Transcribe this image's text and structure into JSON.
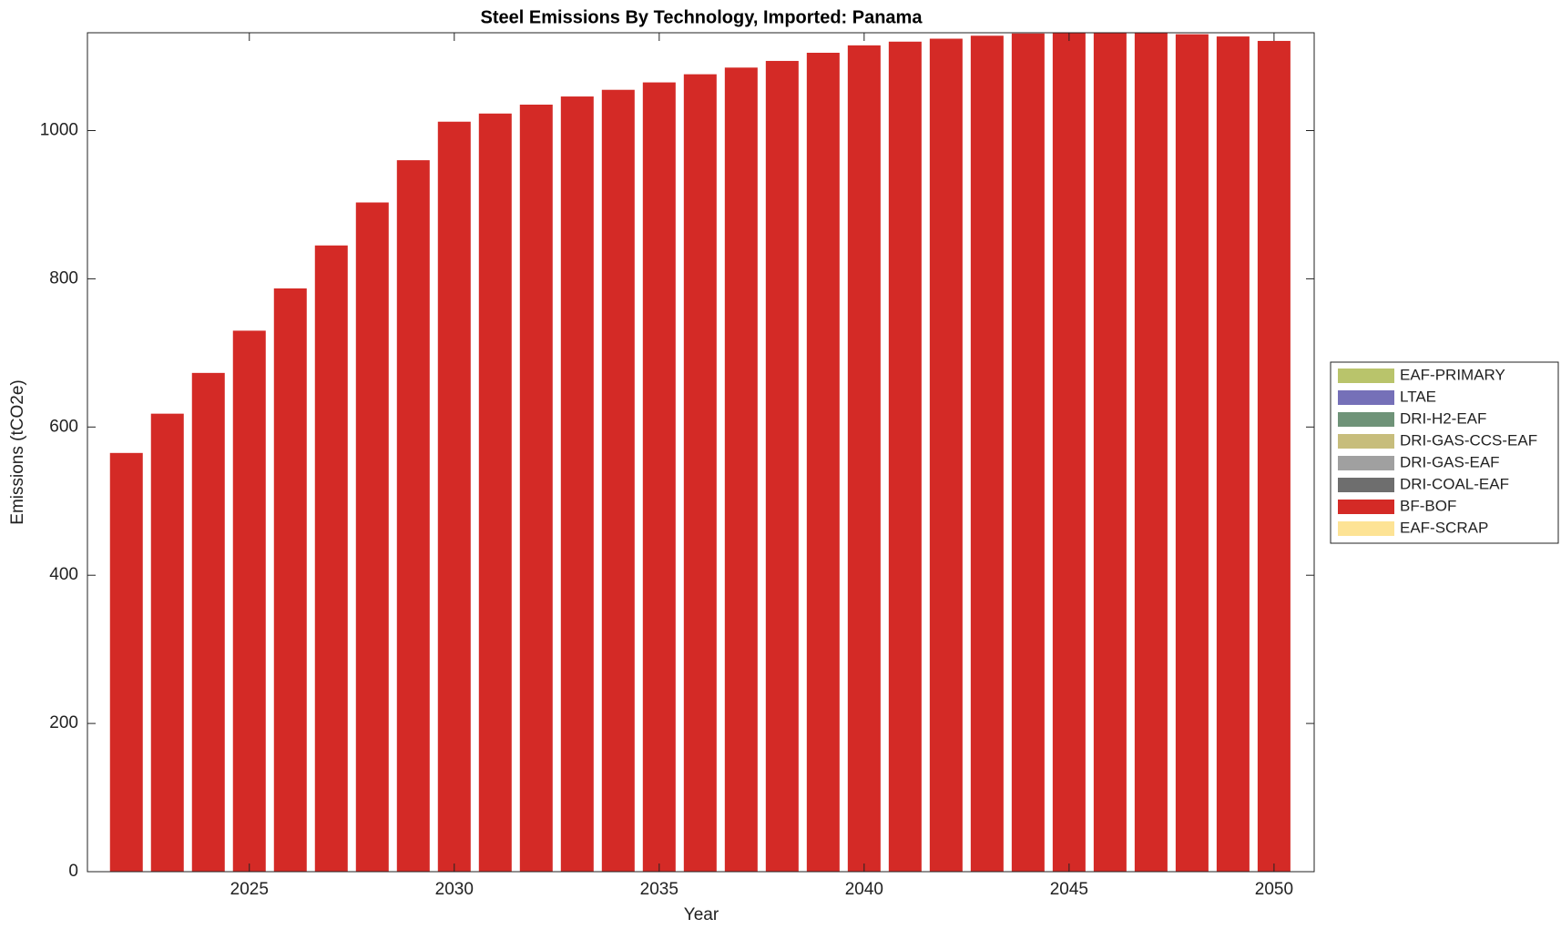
{
  "chart_data": {
    "type": "stacked-bar",
    "title": "Steel Emissions By Technology, Imported: Panama",
    "xlabel": "Year",
    "ylabel": "Emissions (tCO2e)",
    "x": [
      2022,
      2023,
      2024,
      2025,
      2026,
      2027,
      2028,
      2029,
      2030,
      2031,
      2032,
      2033,
      2034,
      2035,
      2036,
      2037,
      2038,
      2039,
      2040,
      2041,
      2042,
      2043,
      2044,
      2045,
      2046,
      2047,
      2048,
      2049,
      2050
    ],
    "xlim": [
      2021.05,
      2050.98
    ],
    "xticks": [
      2025,
      2030,
      2035,
      2040,
      2045,
      2050
    ],
    "ylim": [
      0,
      1132
    ],
    "yticks": [
      0,
      200,
      400,
      600,
      800,
      1000
    ],
    "legend": "outside-right",
    "series": [
      {
        "name": "EAF-PRIMARY",
        "color": "#b9c46b",
        "values": [
          0,
          0,
          0,
          0,
          0,
          0,
          0,
          0,
          0,
          0,
          0,
          0,
          0,
          0,
          0,
          0,
          0,
          0,
          0,
          0,
          0,
          0,
          0,
          0,
          0,
          0,
          0,
          0,
          0
        ]
      },
      {
        "name": "LTAE",
        "color": "#7570b8",
        "values": [
          0,
          0,
          0,
          0,
          0,
          0,
          0,
          0,
          0,
          0,
          0,
          0,
          0,
          0,
          0,
          0,
          0,
          0,
          0,
          0,
          0,
          0,
          0,
          0,
          0,
          0,
          0,
          0,
          0
        ]
      },
      {
        "name": "DRI-H2-EAF",
        "color": "#6f9378",
        "values": [
          0,
          0,
          0,
          0,
          0,
          0,
          0,
          0,
          0,
          0,
          0,
          0,
          0,
          0,
          0,
          0,
          0,
          0,
          0,
          0,
          0,
          0,
          0,
          0,
          0,
          0,
          0,
          0,
          0
        ]
      },
      {
        "name": "DRI-GAS-CCS-EAF",
        "color": "#c7bd7c",
        "values": [
          0,
          0,
          0,
          0,
          0,
          0,
          0,
          0,
          0,
          0,
          0,
          0,
          0,
          0,
          0,
          0,
          0,
          0,
          0,
          0,
          0,
          0,
          0,
          0,
          0,
          0,
          0,
          0,
          0
        ]
      },
      {
        "name": "DRI-GAS-EAF",
        "color": "#a0a0a0",
        "values": [
          0,
          0,
          0,
          0,
          0,
          0,
          0,
          0,
          0,
          0,
          0,
          0,
          0,
          0,
          0,
          0,
          0,
          0,
          0,
          0,
          0,
          0,
          0,
          0,
          0,
          0,
          0,
          0,
          0
        ]
      },
      {
        "name": "DRI-COAL-EAF",
        "color": "#6e6e6e",
        "values": [
          0,
          0,
          0,
          0,
          0,
          0,
          0,
          0,
          0,
          0,
          0,
          0,
          0,
          0,
          0,
          0,
          0,
          0,
          0,
          0,
          0,
          0,
          0,
          0,
          0,
          0,
          0,
          0,
          0
        ]
      },
      {
        "name": "BF-BOF",
        "color": "#d42a26",
        "values": [
          565,
          618,
          673,
          730,
          787,
          845,
          903,
          960,
          1012,
          1023,
          1035,
          1046,
          1055,
          1065,
          1076,
          1085,
          1094,
          1105,
          1115,
          1120,
          1124,
          1128,
          1131,
          1133,
          1134,
          1134,
          1130,
          1127,
          1121
        ]
      },
      {
        "name": "EAF-SCRAP",
        "color": "#fde395",
        "values": [
          0,
          0,
          0,
          0,
          0,
          0,
          0,
          0,
          0,
          0,
          0,
          0,
          0,
          0,
          0,
          0,
          0,
          0,
          0,
          0,
          0,
          0,
          0,
          0,
          0,
          0,
          0,
          0,
          0
        ]
      }
    ]
  }
}
